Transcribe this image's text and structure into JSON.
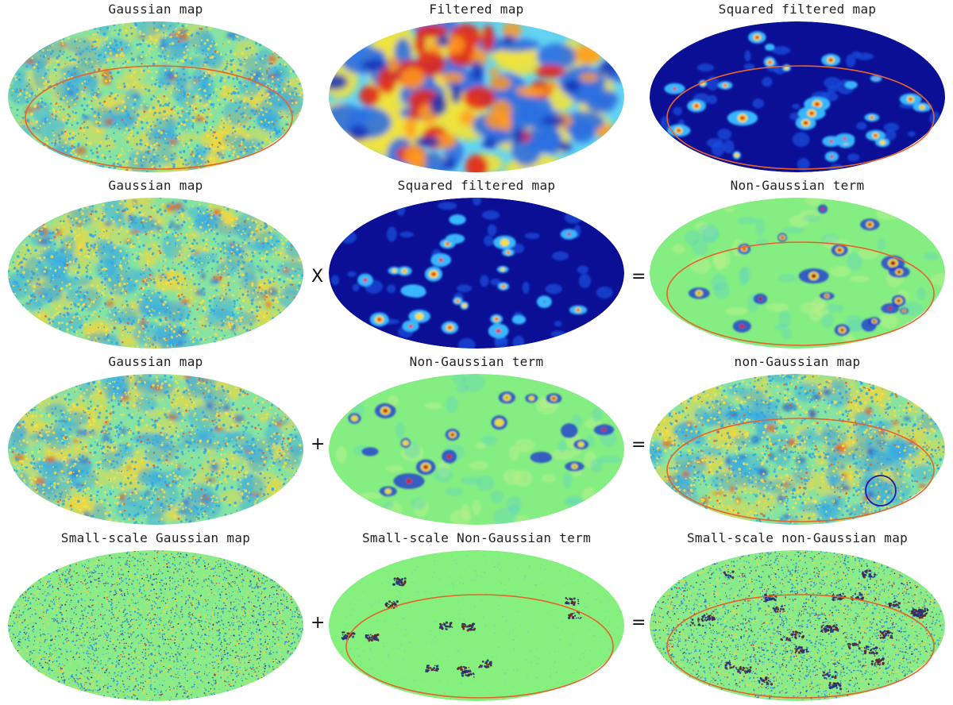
{
  "colors": {
    "background_green": "#7ef07c",
    "deep_blue": "#00008b",
    "highlight_orange": "#e8632b",
    "highlight_blue": "#1c1ca8"
  },
  "rows": [
    {
      "operators": [
        "",
        ""
      ],
      "panels": [
        {
          "title": "Gaussian map",
          "style": "gaussian",
          "ellipse": "orange"
        },
        {
          "title": "Filtered map",
          "style": "filtered",
          "ellipse": ""
        },
        {
          "title": "Squared filtered map",
          "style": "squared",
          "ellipse": "orange"
        }
      ]
    },
    {
      "operators": [
        "X",
        "="
      ],
      "panels": [
        {
          "title": "Gaussian map",
          "style": "gaussian",
          "ellipse": ""
        },
        {
          "title": "Squared filtered map",
          "style": "squared",
          "ellipse": ""
        },
        {
          "title": "Non-Gaussian term",
          "style": "ngterm",
          "ellipse": "orange"
        }
      ]
    },
    {
      "operators": [
        "+",
        "="
      ],
      "panels": [
        {
          "title": "Gaussian map",
          "style": "gaussian",
          "ellipse": ""
        },
        {
          "title": "Non-Gaussian term",
          "style": "ngterm",
          "ellipse": ""
        },
        {
          "title": "non-Gaussian map",
          "style": "ngmap",
          "ellipse": "orange",
          "circle": "blue"
        }
      ]
    },
    {
      "operators": [
        "+",
        "="
      ],
      "panels": [
        {
          "title": "Small-scale Gaussian map",
          "style": "smallgauss",
          "ellipse": ""
        },
        {
          "title": "Small-scale Non-Gaussian term",
          "style": "smallng",
          "ellipse": "orange"
        },
        {
          "title": "Small-scale non-Gaussian map",
          "style": "smallngmap",
          "ellipse": "orange"
        }
      ]
    }
  ]
}
